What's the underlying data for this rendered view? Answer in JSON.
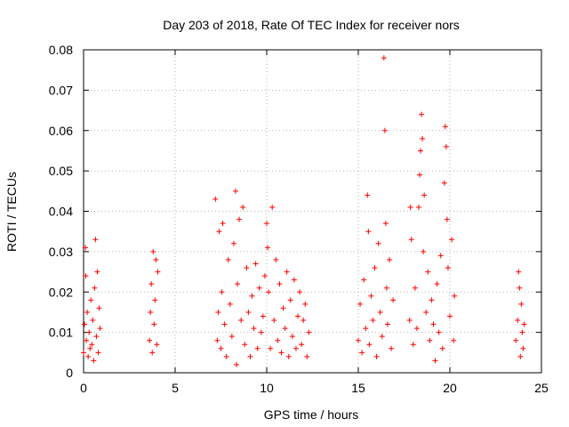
{
  "chart_data": {
    "type": "scatter",
    "title": "Day 203 of 2018, Rate Of TEC Index for receiver nors",
    "xlabel": "GPS time / hours",
    "ylabel": "ROTI / TECUs",
    "xlim": [
      0,
      25
    ],
    "ylim": [
      0,
      0.08
    ],
    "x_ticks": [
      0,
      5,
      10,
      15,
      20,
      25
    ],
    "y_ticks": [
      0,
      0.01,
      0.02,
      0.03,
      0.04,
      0.05,
      0.06,
      0.07,
      0.08
    ],
    "x_tick_labels": [
      "0",
      "5",
      "10",
      "15",
      "20",
      "25"
    ],
    "y_tick_labels": [
      "0",
      "0.01",
      "0.02",
      "0.03",
      "0.04",
      "0.05",
      "0.06",
      "0.07",
      "0.08"
    ],
    "grid": true,
    "marker": "+",
    "color": "#ff0000",
    "series": [
      {
        "name": "ROTI",
        "points": [
          [
            0.0,
            0.005
          ],
          [
            0.05,
            0.012
          ],
          [
            0.1,
            0.031
          ],
          [
            0.12,
            0.024
          ],
          [
            0.15,
            0.008
          ],
          [
            0.2,
            0.015
          ],
          [
            0.25,
            0.004
          ],
          [
            0.3,
            0.01
          ],
          [
            0.35,
            0.006
          ],
          [
            0.4,
            0.018
          ],
          [
            0.45,
            0.007
          ],
          [
            0.5,
            0.013
          ],
          [
            0.55,
            0.003
          ],
          [
            0.6,
            0.021
          ],
          [
            0.65,
            0.033
          ],
          [
            0.7,
            0.009
          ],
          [
            0.75,
            0.025
          ],
          [
            0.8,
            0.005
          ],
          [
            0.85,
            0.016
          ],
          [
            0.9,
            0.011
          ],
          [
            3.6,
            0.008
          ],
          [
            3.65,
            0.015
          ],
          [
            3.7,
            0.022
          ],
          [
            3.75,
            0.005
          ],
          [
            3.8,
            0.03
          ],
          [
            3.85,
            0.012
          ],
          [
            3.9,
            0.018
          ],
          [
            3.95,
            0.028
          ],
          [
            4.0,
            0.007
          ],
          [
            4.05,
            0.025
          ],
          [
            7.2,
            0.043
          ],
          [
            7.3,
            0.008
          ],
          [
            7.35,
            0.015
          ],
          [
            7.4,
            0.035
          ],
          [
            7.5,
            0.006
          ],
          [
            7.55,
            0.02
          ],
          [
            7.6,
            0.037
          ],
          [
            7.7,
            0.012
          ],
          [
            7.8,
            0.004
          ],
          [
            7.9,
            0.028
          ],
          [
            8.0,
            0.017
          ],
          [
            8.1,
            0.009
          ],
          [
            8.2,
            0.032
          ],
          [
            8.3,
            0.045
          ],
          [
            8.35,
            0.002
          ],
          [
            8.4,
            0.022
          ],
          [
            8.5,
            0.038
          ],
          [
            8.6,
            0.013
          ],
          [
            8.7,
            0.041
          ],
          [
            8.8,
            0.007
          ],
          [
            8.9,
            0.026
          ],
          [
            9.0,
            0.015
          ],
          [
            9.1,
            0.004
          ],
          [
            9.2,
            0.019
          ],
          [
            9.3,
            0.011
          ],
          [
            9.4,
            0.027
          ],
          [
            9.5,
            0.006
          ],
          [
            9.6,
            0.021
          ],
          [
            9.7,
            0.01
          ],
          [
            9.8,
            0.014
          ],
          [
            9.9,
            0.024
          ],
          [
            10.0,
            0.037
          ],
          [
            10.05,
            0.031
          ],
          [
            10.1,
            0.02
          ],
          [
            10.2,
            0.006
          ],
          [
            10.3,
            0.041
          ],
          [
            10.4,
            0.013
          ],
          [
            10.5,
            0.028
          ],
          [
            10.6,
            0.008
          ],
          [
            10.7,
            0.022
          ],
          [
            10.8,
            0.005
          ],
          [
            10.9,
            0.016
          ],
          [
            11.0,
            0.011
          ],
          [
            11.1,
            0.025
          ],
          [
            11.2,
            0.004
          ],
          [
            11.3,
            0.018
          ],
          [
            11.4,
            0.009
          ],
          [
            11.5,
            0.023
          ],
          [
            11.6,
            0.006
          ],
          [
            11.7,
            0.014
          ],
          [
            11.8,
            0.02
          ],
          [
            11.9,
            0.007
          ],
          [
            12.0,
            0.013
          ],
          [
            12.1,
            0.017
          ],
          [
            12.2,
            0.004
          ],
          [
            12.3,
            0.01
          ],
          [
            15.0,
            0.008
          ],
          [
            15.1,
            0.017
          ],
          [
            15.2,
            0.005
          ],
          [
            15.3,
            0.023
          ],
          [
            15.4,
            0.011
          ],
          [
            15.5,
            0.044
          ],
          [
            15.55,
            0.035
          ],
          [
            15.6,
            0.007
          ],
          [
            15.7,
            0.019
          ],
          [
            15.8,
            0.013
          ],
          [
            15.9,
            0.026
          ],
          [
            16.0,
            0.004
          ],
          [
            16.1,
            0.032
          ],
          [
            16.2,
            0.015
          ],
          [
            16.3,
            0.009
          ],
          [
            16.4,
            0.078
          ],
          [
            16.45,
            0.06
          ],
          [
            16.5,
            0.037
          ],
          [
            16.55,
            0.021
          ],
          [
            16.6,
            0.012
          ],
          [
            16.7,
            0.028
          ],
          [
            16.8,
            0.006
          ],
          [
            16.9,
            0.018
          ],
          [
            17.8,
            0.013
          ],
          [
            17.85,
            0.041
          ],
          [
            17.9,
            0.033
          ],
          [
            18.0,
            0.007
          ],
          [
            18.1,
            0.021
          ],
          [
            18.2,
            0.011
          ],
          [
            18.3,
            0.041
          ],
          [
            18.35,
            0.049
          ],
          [
            18.4,
            0.055
          ],
          [
            18.45,
            0.064
          ],
          [
            18.5,
            0.058
          ],
          [
            18.55,
            0.03
          ],
          [
            18.6,
            0.044
          ],
          [
            18.7,
            0.015
          ],
          [
            18.8,
            0.025
          ],
          [
            18.9,
            0.008
          ],
          [
            19.0,
            0.018
          ],
          [
            19.1,
            0.012
          ],
          [
            19.2,
            0.003
          ],
          [
            19.3,
            0.022
          ],
          [
            19.4,
            0.01
          ],
          [
            19.5,
            0.029
          ],
          [
            19.6,
            0.006
          ],
          [
            19.7,
            0.047
          ],
          [
            19.75,
            0.061
          ],
          [
            19.8,
            0.056
          ],
          [
            19.85,
            0.038
          ],
          [
            19.9,
            0.026
          ],
          [
            20.0,
            0.014
          ],
          [
            20.1,
            0.033
          ],
          [
            20.2,
            0.008
          ],
          [
            20.25,
            0.019
          ],
          [
            23.6,
            0.008
          ],
          [
            23.7,
            0.013
          ],
          [
            23.75,
            0.025
          ],
          [
            23.8,
            0.021
          ],
          [
            23.85,
            0.004
          ],
          [
            23.9,
            0.017
          ],
          [
            23.95,
            0.01
          ],
          [
            24.0,
            0.006
          ],
          [
            24.05,
            0.012
          ]
        ]
      }
    ]
  }
}
